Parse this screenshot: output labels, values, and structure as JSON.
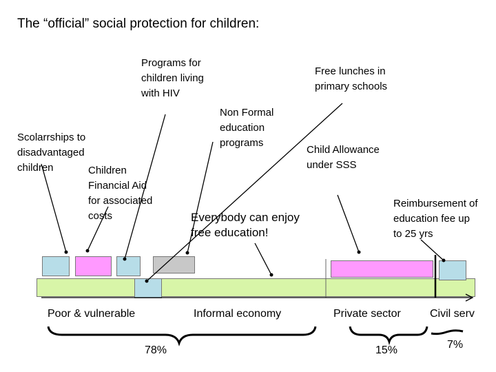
{
  "title": "The “official” social protection for children:",
  "labels": {
    "hiv_programs": [
      "Programs for",
      "children living",
      "with HIV"
    ],
    "free_lunches": [
      "Free lunches in",
      "primary schools"
    ],
    "non_formal": [
      "Non Formal",
      "education",
      "programs"
    ],
    "scholarships": [
      "Scolarrships to",
      "disadvantaged",
      "children"
    ],
    "financial_aid": [
      "Children",
      "Financial Aid",
      "for associated",
      "costs"
    ],
    "child_allowance": [
      "Child Allowance",
      "under SSS"
    ],
    "free_education": [
      "Everybody can enjoy",
      "free education!"
    ],
    "reimbursement": [
      "Reimbursement of",
      "education fee up",
      "to 25 yrs"
    ]
  },
  "segments": {
    "poor": "Poor  & vulnerable",
    "informal": "Informal economy",
    "private": "Private sector",
    "civil": "Civil serv"
  },
  "percentages": {
    "poor_informal": "78%",
    "private": "15%",
    "civil": "7%"
  },
  "colors": {
    "bar_green": "#d8f5a8",
    "box_blue": "#b7dde8",
    "box_pink": "#ff99ff",
    "box_gray": "#c8c8c8"
  }
}
